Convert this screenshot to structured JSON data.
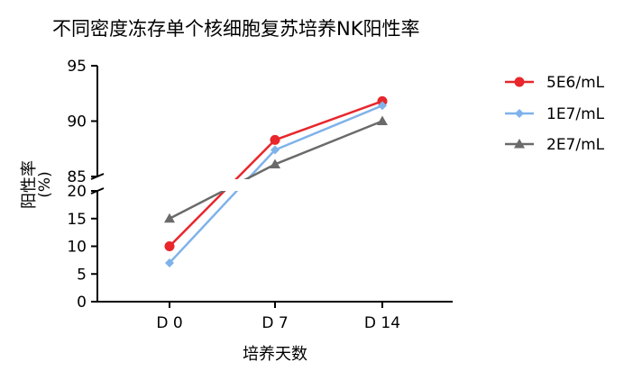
{
  "chart_data": {
    "type": "line",
    "title": "不同密度冻存单个核细胞复苏培养NK阳性率",
    "xlabel": "培养天数",
    "ylabel": "阳性率",
    "ylabel_unit": "(%)",
    "categories": [
      "D 0",
      "D 7",
      "D 14"
    ],
    "y_segments": [
      {
        "range": [
          0,
          20
        ],
        "ticks": [
          "0",
          "5",
          "10",
          "15",
          "20"
        ],
        "tick_values": [
          0,
          5,
          10,
          15,
          20
        ]
      },
      {
        "range": [
          85,
          95
        ],
        "ticks": [
          "85",
          "90",
          "95"
        ],
        "tick_values": [
          85,
          90,
          95
        ]
      }
    ],
    "axis_break": [
      20,
      85
    ],
    "grid": false,
    "legend_position": "right",
    "series": [
      {
        "name": "5E6/mL",
        "color": "#e8262b",
        "marker": "circle",
        "values": [
          10,
          88.3,
          91.8
        ]
      },
      {
        "name": "1E7/mL",
        "color": "#7fb2ea",
        "marker": "diamond",
        "values": [
          7,
          87.4,
          91.4
        ]
      },
      {
        "name": "2E7/mL",
        "color": "#6a6a6a",
        "marker": "triangle",
        "values": [
          15,
          86.1,
          90.0
        ]
      }
    ]
  }
}
